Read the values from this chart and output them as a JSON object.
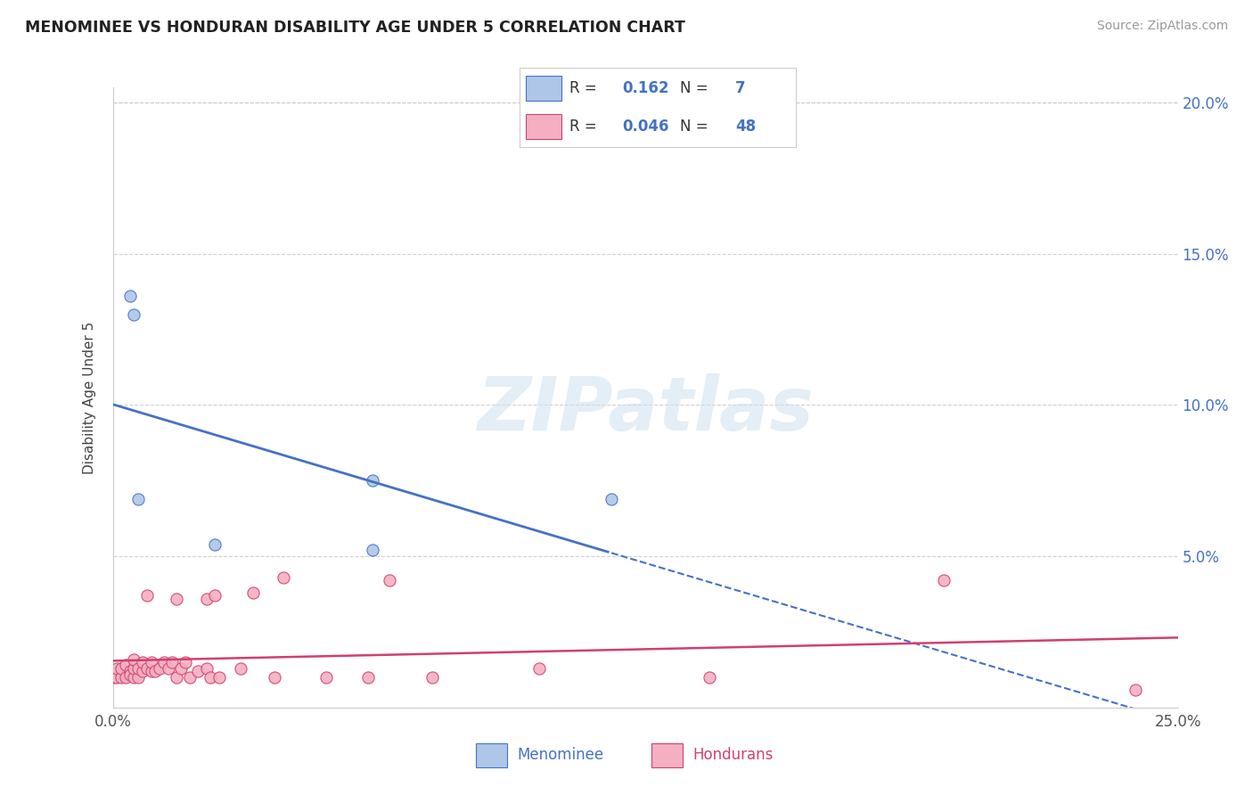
{
  "title": "MENOMINEE VS HONDURAN DISABILITY AGE UNDER 5 CORRELATION CHART",
  "source": "Source: ZipAtlas.com",
  "ylabel": "Disability Age Under 5",
  "xlim": [
    0.0,
    0.25
  ],
  "ylim": [
    0.0,
    0.205
  ],
  "menominee_fill": "#aec6e8",
  "menominee_edge": "#4472c4",
  "honduran_fill": "#f4b0c0",
  "honduran_edge": "#d04070",
  "menominee_line_color": "#4472c4",
  "honduran_line_color": "#d04070",
  "dashed_color": "#4472c4",
  "text_blue": "#4472c4",
  "text_dark": "#444444",
  "watermark_color": "#cce0f0",
  "grid_color": "#cccccc",
  "menominee_x": [
    0.004,
    0.005,
    0.006,
    0.024,
    0.061,
    0.061,
    0.117
  ],
  "menominee_y": [
    0.136,
    0.13,
    0.069,
    0.054,
    0.075,
    0.052,
    0.069
  ],
  "honduran_x": [
    0.0,
    0.001,
    0.001,
    0.002,
    0.002,
    0.003,
    0.003,
    0.004,
    0.004,
    0.005,
    0.005,
    0.005,
    0.006,
    0.006,
    0.007,
    0.007,
    0.008,
    0.008,
    0.009,
    0.009,
    0.01,
    0.011,
    0.012,
    0.013,
    0.014,
    0.015,
    0.015,
    0.016,
    0.017,
    0.018,
    0.02,
    0.022,
    0.022,
    0.023,
    0.024,
    0.025,
    0.03,
    0.033,
    0.038,
    0.04,
    0.05,
    0.06,
    0.065,
    0.075,
    0.1,
    0.14,
    0.195,
    0.24
  ],
  "honduran_y": [
    0.01,
    0.01,
    0.013,
    0.01,
    0.013,
    0.01,
    0.014,
    0.012,
    0.011,
    0.01,
    0.013,
    0.016,
    0.01,
    0.013,
    0.012,
    0.015,
    0.013,
    0.037,
    0.012,
    0.015,
    0.012,
    0.013,
    0.015,
    0.013,
    0.015,
    0.036,
    0.01,
    0.013,
    0.015,
    0.01,
    0.012,
    0.036,
    0.013,
    0.01,
    0.037,
    0.01,
    0.013,
    0.038,
    0.01,
    0.043,
    0.01,
    0.01,
    0.042,
    0.01,
    0.013,
    0.01,
    0.042,
    0.006
  ],
  "xtick_positions": [
    0.0,
    0.05,
    0.1,
    0.15,
    0.2,
    0.25
  ],
  "xtick_labels": [
    "0.0%",
    "",
    "",
    "",
    "",
    "25.0%"
  ],
  "ytick_positions": [
    0.0,
    0.05,
    0.1,
    0.15,
    0.2
  ],
  "ytick_right_labels": [
    "",
    "5.0%",
    "10.0%",
    "15.0%",
    "20.0%"
  ],
  "legend_R1": "0.162",
  "legend_N1": "7",
  "legend_R2": "0.046",
  "legend_N2": "48",
  "bottom_label1": "Menominee",
  "bottom_label2": "Hondurans"
}
